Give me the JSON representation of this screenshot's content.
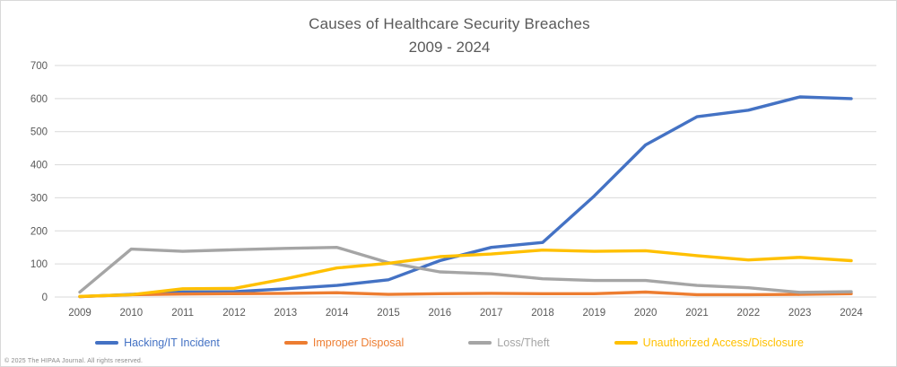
{
  "chart_data": {
    "type": "line",
    "title": "Causes of Healthcare Security Breaches",
    "subtitle": "2009 - 2024",
    "x": [
      2009,
      2010,
      2011,
      2012,
      2013,
      2014,
      2015,
      2016,
      2017,
      2018,
      2019,
      2020,
      2021,
      2022,
      2023,
      2024
    ],
    "xlabel": "",
    "ylabel": "",
    "ylim": [
      0,
      700
    ],
    "ytick_step": 100,
    "grid": true,
    "legend_position": "bottom",
    "axis_label_color": "#595959",
    "gridline_color": "#d9d9d9",
    "background_color": "#ffffff",
    "series": [
      {
        "name": "Hacking/IT Incident",
        "color": "#4472C4",
        "values": [
          1,
          8,
          15,
          16,
          25,
          35,
          52,
          110,
          150,
          165,
          305,
          460,
          545,
          565,
          605,
          600
        ]
      },
      {
        "name": "Improper Disposal",
        "color": "#ED7D31",
        "values": [
          1,
          7,
          9,
          10,
          11,
          13,
          8,
          10,
          11,
          10,
          10,
          15,
          7,
          7,
          8,
          10
        ]
      },
      {
        "name": "Loss/Theft",
        "color": "#A5A5A5",
        "values": [
          15,
          145,
          138,
          143,
          147,
          150,
          104,
          76,
          70,
          55,
          50,
          50,
          35,
          28,
          14,
          16
        ]
      },
      {
        "name": "Unauthorized Access/Disclosure",
        "color": "#FFC000",
        "values": [
          2,
          7,
          25,
          26,
          55,
          88,
          102,
          122,
          130,
          142,
          138,
          140,
          125,
          112,
          120,
          110
        ]
      }
    ]
  },
  "footer": {
    "copyright": "© 2025 The HIPAA Journal. All rights reserved."
  }
}
